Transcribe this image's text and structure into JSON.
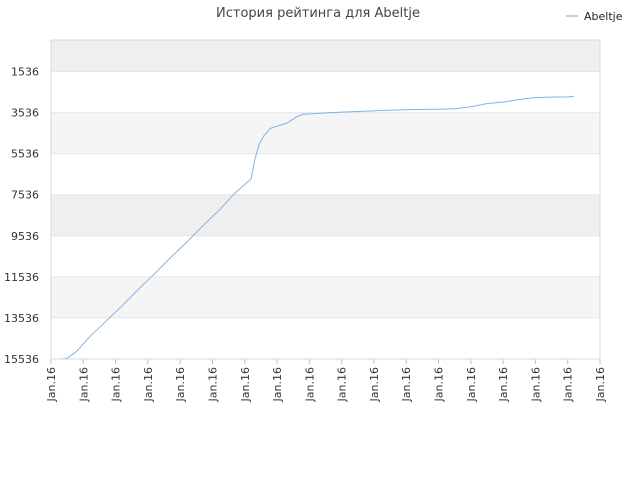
{
  "chart_data": {
    "type": "line",
    "title": "История рейтинга для Abeltje",
    "xlabel": "",
    "ylabel": "",
    "legend": {
      "position": "top-right",
      "entries": [
        "Abeltje"
      ]
    },
    "y_axis": {
      "reversed": true,
      "min": 15536,
      "max": 0,
      "ticks": [
        1536,
        3536,
        5536,
        7536,
        9536,
        11536,
        13536,
        15536
      ]
    },
    "x_axis": {
      "ticks": [
        "Jan.16",
        "Jan.16",
        "Jan.16",
        "Jan.16",
        "Jan.16",
        "Jan.16",
        "Jan.16",
        "Jan.16",
        "Jan.16",
        "Jan.16",
        "Jan.16",
        "Jan.16",
        "Jan.16",
        "Jan.16",
        "Jan.16",
        "Jan.16",
        "Jan.16",
        "Jan.16"
      ],
      "min": 0,
      "max": 17
    },
    "grid": true,
    "band_colors": [
      "#efefef",
      "#ffffff",
      "#f5f5f5",
      "#ffffff"
    ],
    "series": [
      {
        "name": "Abeltje",
        "color": "#7cb5ec",
        "x": [
          0.31,
          0.5,
          0.8,
          1.2,
          1.7,
          2.2,
          2.7,
          3.2,
          3.7,
          4.2,
          4.7,
          5.2,
          5.7,
          6.1,
          6.2,
          6.3,
          6.45,
          6.6,
          6.8,
          7.0,
          7.3,
          7.6,
          7.8,
          8.0,
          8.2,
          8.6,
          9.0,
          9.5,
          10.0,
          10.5,
          11.0,
          11.5,
          12.0,
          12.5,
          13.0,
          13.5,
          14.0,
          14.5,
          15.0,
          15.5,
          16.0,
          16.2
        ],
        "y": [
          15536,
          15500,
          15150,
          14450,
          13700,
          12950,
          12150,
          11400,
          10600,
          9850,
          9050,
          8300,
          7450,
          6900,
          6750,
          5900,
          5050,
          4650,
          4300,
          4200,
          4050,
          3750,
          3620,
          3600,
          3580,
          3540,
          3510,
          3480,
          3450,
          3420,
          3400,
          3380,
          3370,
          3350,
          3250,
          3100,
          3020,
          2900,
          2800,
          2780,
          2770,
          2740
        ]
      }
    ]
  }
}
